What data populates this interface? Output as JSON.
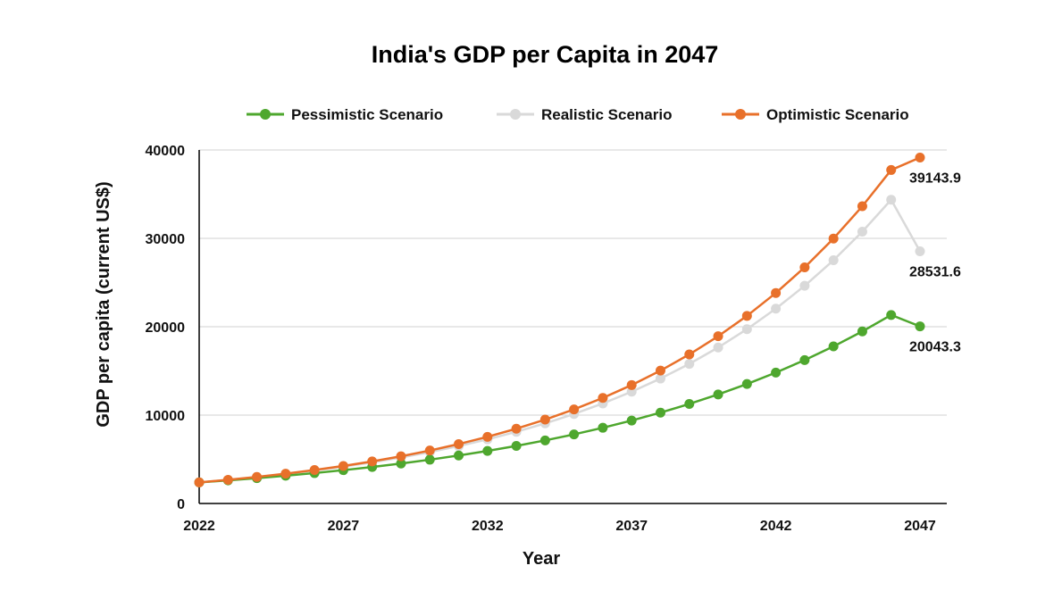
{
  "chart_data": {
    "type": "line",
    "title": "India's GDP per Capita in 2047",
    "xlabel": "Year",
    "ylabel": "GDP per capita (current US$)",
    "x": [
      2022,
      2023,
      2024,
      2025,
      2026,
      2027,
      2028,
      2029,
      2030,
      2031,
      2032,
      2033,
      2034,
      2035,
      2036,
      2037,
      2038,
      2039,
      2040,
      2041,
      2042,
      2043,
      2044,
      2045,
      2046,
      2047
    ],
    "x_ticks": [
      "2022",
      "2027",
      "2032",
      "2037",
      "2042",
      "2047"
    ],
    "y_ticks": [
      "0",
      "10000",
      "20000",
      "30000",
      "40000"
    ],
    "ylim": [
      0,
      40000
    ],
    "xlim": [
      2022,
      2047
    ],
    "grid": "horizontal",
    "legend_position": "top",
    "series": [
      {
        "name": "Pessimistic Scenario",
        "color": "#4ea72e",
        "values": [
          2389,
          2617,
          2867,
          3141,
          3441,
          3769,
          4129,
          4524,
          4956,
          5429,
          5948,
          6516,
          7138,
          7820,
          8567,
          9385,
          10281,
          11263,
          12339,
          13518,
          14809,
          16223,
          17773,
          19470,
          21330,
          20043.3
        ],
        "end_label": "20043.3"
      },
      {
        "name": "Realistic Scenario",
        "color": "#d9d9d9",
        "values": [
          2389,
          2671,
          2985,
          3336,
          3728,
          4166,
          4655,
          5202,
          5813,
          6496,
          7259,
          8112,
          9065,
          10130,
          11320,
          12650,
          14136,
          15796,
          17652,
          19725,
          22042,
          24631,
          27524,
          30757,
          34369,
          28531.6
        ],
        "end_label": "28531.6"
      },
      {
        "name": "Optimistic Scenario",
        "color": "#e8702a",
        "values": [
          2389,
          2680,
          3006,
          3373,
          3784,
          4244,
          4762,
          5342,
          5993,
          6722,
          7541,
          8461,
          9492,
          10648,
          11946,
          13402,
          15035,
          16868,
          18924,
          21231,
          23819,
          26722,
          29979,
          33634,
          37734,
          39143.9
        ],
        "end_label": "39143.9"
      }
    ]
  }
}
